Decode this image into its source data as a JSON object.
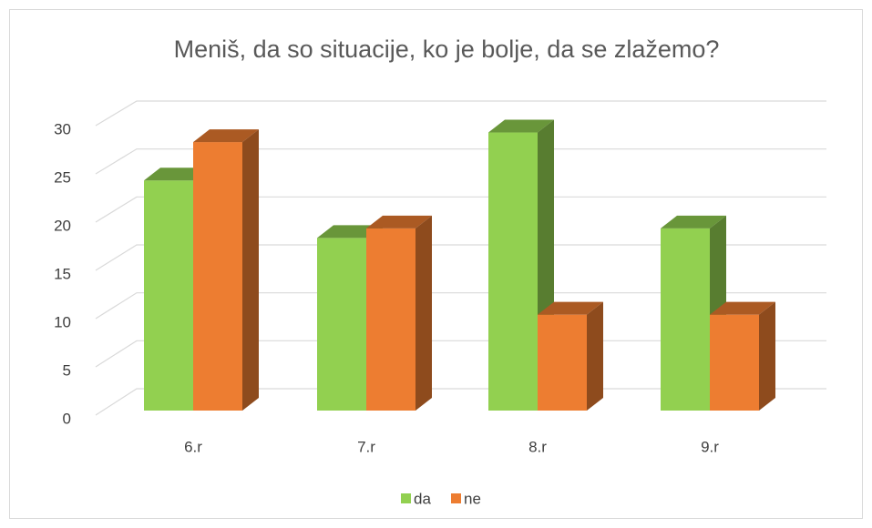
{
  "chart_data": {
    "type": "bar3d",
    "title": "Meniš, da so situacije, ko je bolje, da se zlažemo?",
    "categories": [
      "6.r",
      "7.r",
      "8.r",
      "9.r"
    ],
    "series": [
      {
        "name": "da",
        "color": "#92d050",
        "values": [
          24,
          18,
          29,
          19
        ]
      },
      {
        "name": "ne",
        "color": "#ed7d31",
        "values": [
          28,
          19,
          10,
          10
        ]
      }
    ],
    "ylim": [
      0,
      30
    ],
    "yticks": [
      0,
      5,
      10,
      15,
      20,
      25,
      30
    ],
    "grid": true,
    "legend": "bottom"
  }
}
